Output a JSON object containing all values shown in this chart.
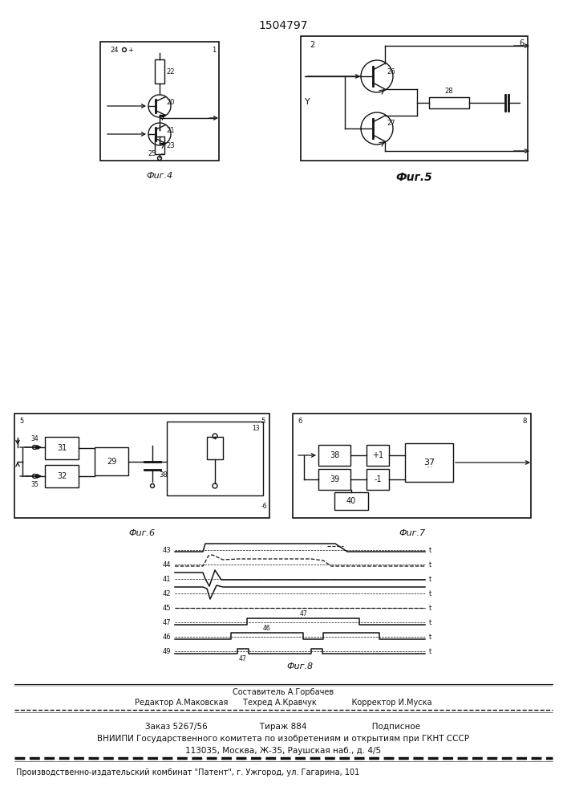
{
  "title": "1504797",
  "bg_color": "#ffffff",
  "fig_width": 7.07,
  "fig_height": 10.0,
  "footer_lines": [
    "Составитель А.Горбачев",
    "Редактор А.Маковская      Техред А.Кравчук              Корректор И.Муска",
    "Заказ 5267/56                    Тираж 884                         Подписное",
    "ВНИИПИ Государственного комитета по изобретениям и открытиям при ГКНТ СССР",
    "113035, Москва, Ж-35, Раушская наб., д. 4/5",
    "Производственно-издательский комбинат \"Патент\", г. Ужгород, ул. Гагарина, 101"
  ],
  "fig4_label": "Фuг.4",
  "fig5_label": "Фuг.5",
  "fig6_label": "Фuг.6",
  "fig7_label": "Фuг.7",
  "fig8_label": "Фuг.8"
}
